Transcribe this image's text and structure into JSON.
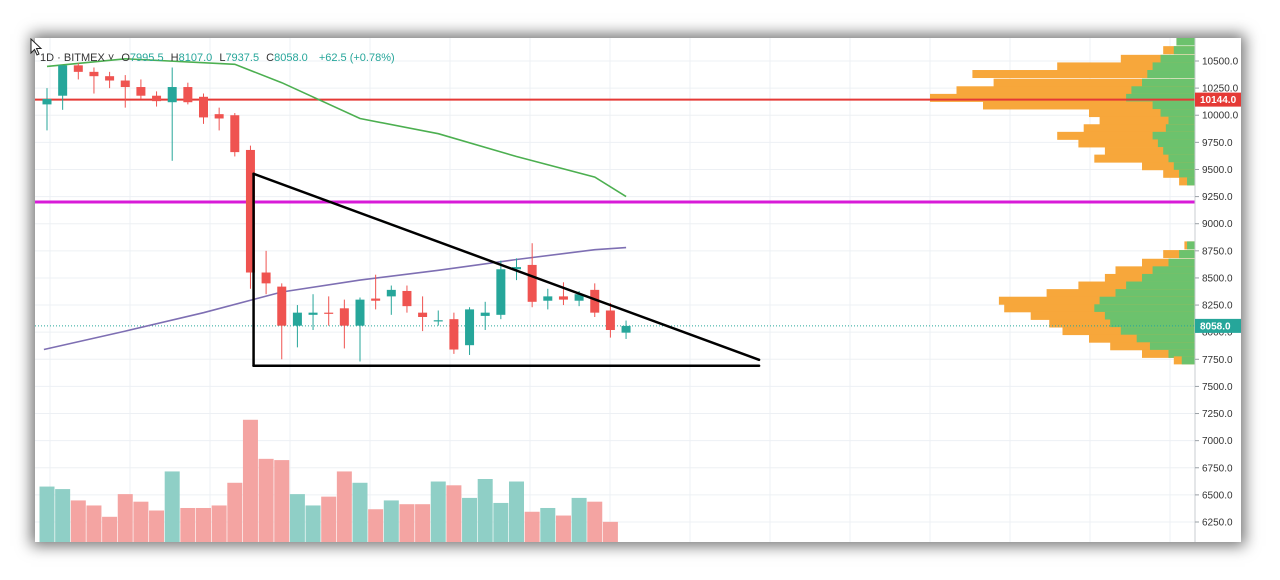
{
  "header": {
    "interval": "1D",
    "exchange": "BITMEX",
    "open_label": "O",
    "open": "7995.5",
    "high_label": "H",
    "high": "8107.0",
    "low_label": "L",
    "low": "7937.5",
    "close_label": "C",
    "close": "8058.0",
    "change": "+62.5 (+0.78%)"
  },
  "colors": {
    "up": "#26a69a",
    "down": "#ef5350",
    "up_volume": "#8fcfc6",
    "down_volume": "#f4a4a2",
    "ma_green": "#4caf50",
    "ma_purple": "#7e6fb3",
    "resistance_red": "#e53935",
    "support_magenta": "#d81bd8",
    "triangle": "#000000",
    "profile_orange": "#f7a73b",
    "profile_green": "#6cc26d",
    "text": "#333333"
  },
  "chart_data": {
    "type": "candlestick",
    "price_axis": {
      "ticks": [
        "10500.0",
        "10250.0",
        "10000.0",
        "9750.0",
        "9500.0",
        "9250.0",
        "9000.0",
        "8750.0",
        "8500.0",
        "8250.0",
        "8000.0",
        "7750.0",
        "7500.0",
        "7250.0",
        "7000.0",
        "6750.0",
        "6500.0",
        "6250.0"
      ],
      "range": [
        6050,
        10750
      ]
    },
    "last_price": "8058.0",
    "levels": [
      {
        "name": "resistance",
        "value": 10144,
        "label": "10144.0",
        "color": "#e53935"
      },
      {
        "name": "support",
        "value": 9200,
        "label": "",
        "color": "#d81bd8"
      }
    ],
    "candles": [
      {
        "o": 10100,
        "h": 10250,
        "l": 9860,
        "c": 10150
      },
      {
        "o": 10180,
        "h": 10450,
        "l": 10050,
        "c": 10460
      },
      {
        "o": 10460,
        "h": 10480,
        "l": 10330,
        "c": 10400
      },
      {
        "o": 10400,
        "h": 10440,
        "l": 10200,
        "c": 10360
      },
      {
        "o": 10360,
        "h": 10400,
        "l": 10250,
        "c": 10320
      },
      {
        "o": 10320,
        "h": 10370,
        "l": 10070,
        "c": 10260
      },
      {
        "o": 10260,
        "h": 10330,
        "l": 10150,
        "c": 10180
      },
      {
        "o": 10180,
        "h": 10220,
        "l": 10080,
        "c": 10130
      },
      {
        "o": 10120,
        "h": 10440,
        "l": 9580,
        "c": 10260
      },
      {
        "o": 10260,
        "h": 10300,
        "l": 10100,
        "c": 10120
      },
      {
        "o": 10170,
        "h": 10200,
        "l": 9920,
        "c": 9980
      },
      {
        "o": 10010,
        "h": 10070,
        "l": 9860,
        "c": 9970
      },
      {
        "o": 10000,
        "h": 10020,
        "l": 9620,
        "c": 9660
      },
      {
        "o": 9680,
        "h": 9720,
        "l": 8400,
        "c": 8550
      },
      {
        "o": 8550,
        "h": 8750,
        "l": 8350,
        "c": 8450
      },
      {
        "o": 8420,
        "h": 8450,
        "l": 7750,
        "c": 8060
      },
      {
        "o": 8060,
        "h": 8250,
        "l": 7860,
        "c": 8180
      },
      {
        "o": 8160,
        "h": 8350,
        "l": 8020,
        "c": 8180
      },
      {
        "o": 8180,
        "h": 8330,
        "l": 8060,
        "c": 8170
      },
      {
        "o": 8220,
        "h": 8300,
        "l": 7850,
        "c": 8060
      },
      {
        "o": 8060,
        "h": 8320,
        "l": 7730,
        "c": 8300
      },
      {
        "o": 8310,
        "h": 8530,
        "l": 8210,
        "c": 8290
      },
      {
        "o": 8330,
        "h": 8430,
        "l": 8160,
        "c": 8390
      },
      {
        "o": 8380,
        "h": 8430,
        "l": 8180,
        "c": 8240
      },
      {
        "o": 8180,
        "h": 8330,
        "l": 8010,
        "c": 8140
      },
      {
        "o": 8100,
        "h": 8200,
        "l": 8060,
        "c": 8110
      },
      {
        "o": 8120,
        "h": 8180,
        "l": 7800,
        "c": 7840
      },
      {
        "o": 7880,
        "h": 8230,
        "l": 7790,
        "c": 8210
      },
      {
        "o": 8150,
        "h": 8280,
        "l": 8020,
        "c": 8180
      },
      {
        "o": 8160,
        "h": 8660,
        "l": 8120,
        "c": 8580
      },
      {
        "o": 8580,
        "h": 8680,
        "l": 8480,
        "c": 8600
      },
      {
        "o": 8620,
        "h": 8820,
        "l": 8230,
        "c": 8280
      },
      {
        "o": 8290,
        "h": 8400,
        "l": 8210,
        "c": 8330
      },
      {
        "o": 8330,
        "h": 8460,
        "l": 8250,
        "c": 8300
      },
      {
        "o": 8290,
        "h": 8380,
        "l": 8240,
        "c": 8350
      },
      {
        "o": 8390,
        "h": 8450,
        "l": 8140,
        "c": 8180
      },
      {
        "o": 8200,
        "h": 8270,
        "l": 7950,
        "c": 8020
      },
      {
        "o": 7995.5,
        "h": 8107,
        "l": 7937.5,
        "c": 8058
      }
    ],
    "volume_relative": [
      0.44,
      0.42,
      0.33,
      0.29,
      0.2,
      0.38,
      0.32,
      0.25,
      0.56,
      0.27,
      0.27,
      0.29,
      0.47,
      0.97,
      0.66,
      0.65,
      0.38,
      0.29,
      0.36,
      0.56,
      0.47,
      0.26,
      0.33,
      0.3,
      0.3,
      0.48,
      0.45,
      0.35,
      0.5,
      0.31,
      0.48,
      0.24,
      0.27,
      0.21,
      0.35,
      0.32,
      0.16,
      0.0
    ],
    "moving_averages": [
      {
        "color": "#4caf50",
        "points": [
          [
            0,
            10450
          ],
          [
            5,
            10520
          ],
          [
            12,
            10470
          ],
          [
            15,
            10300
          ],
          [
            20,
            9970
          ],
          [
            25,
            9830
          ],
          [
            30,
            9620
          ],
          [
            35,
            9430
          ],
          [
            37,
            9250
          ]
        ]
      },
      {
        "color": "#7e6fb3",
        "points": [
          [
            -0.2,
            7840
          ],
          [
            5,
            8010
          ],
          [
            10,
            8180
          ],
          [
            15,
            8370
          ],
          [
            20,
            8480
          ],
          [
            25,
            8570
          ],
          [
            30,
            8670
          ],
          [
            35,
            8760
          ],
          [
            37,
            8780
          ]
        ]
      }
    ],
    "triangle": {
      "upper_trendline": [
        [
          13.2,
          9460
        ],
        [
          45.5,
          7745
        ]
      ],
      "lower_support": [
        [
          13.2,
          7690
        ],
        [
          45.5,
          7690
        ]
      ],
      "vertical": [
        [
          13.2,
          9460
        ],
        [
          13.2,
          7690
        ]
      ]
    },
    "volume_profile": [
      {
        "price": 10680,
        "orange": 0.07,
        "green": 0.07
      },
      {
        "price": 10600,
        "orange": 0.12,
        "green": 0.08
      },
      {
        "price": 10520,
        "orange": 0.28,
        "green": 0.13
      },
      {
        "price": 10450,
        "orange": 0.52,
        "green": 0.16
      },
      {
        "price": 10380,
        "orange": 0.84,
        "green": 0.18
      },
      {
        "price": 10300,
        "orange": 0.76,
        "green": 0.2
      },
      {
        "price": 10230,
        "orange": 0.9,
        "green": 0.24
      },
      {
        "price": 10160,
        "orange": 1.0,
        "green": 0.26
      },
      {
        "price": 10090,
        "orange": 0.8,
        "green": 0.16
      },
      {
        "price": 10020,
        "orange": 0.4,
        "green": 0.13
      },
      {
        "price": 9950,
        "orange": 0.36,
        "green": 0.1
      },
      {
        "price": 9880,
        "orange": 0.42,
        "green": 0.11
      },
      {
        "price": 9810,
        "orange": 0.52,
        "green": 0.16
      },
      {
        "price": 9740,
        "orange": 0.44,
        "green": 0.14
      },
      {
        "price": 9670,
        "orange": 0.34,
        "green": 0.12
      },
      {
        "price": 9600,
        "orange": 0.38,
        "green": 0.1
      },
      {
        "price": 9530,
        "orange": 0.2,
        "green": 0.08
      },
      {
        "price": 9460,
        "orange": 0.12,
        "green": 0.06
      },
      {
        "price": 9390,
        "orange": 0.06,
        "green": 0.03
      },
      {
        "price": 8800,
        "orange": 0.04,
        "green": 0.03
      },
      {
        "price": 8720,
        "orange": 0.12,
        "green": 0.06
      },
      {
        "price": 8640,
        "orange": 0.2,
        "green": 0.1
      },
      {
        "price": 8570,
        "orange": 0.3,
        "green": 0.16
      },
      {
        "price": 8500,
        "orange": 0.34,
        "green": 0.2
      },
      {
        "price": 8430,
        "orange": 0.44,
        "green": 0.26
      },
      {
        "price": 8360,
        "orange": 0.56,
        "green": 0.3
      },
      {
        "price": 8290,
        "orange": 0.74,
        "green": 0.36
      },
      {
        "price": 8220,
        "orange": 0.72,
        "green": 0.38
      },
      {
        "price": 8150,
        "orange": 0.62,
        "green": 0.34
      },
      {
        "price": 8080,
        "orange": 0.55,
        "green": 0.32
      },
      {
        "price": 8010,
        "orange": 0.5,
        "green": 0.28
      },
      {
        "price": 7940,
        "orange": 0.4,
        "green": 0.22
      },
      {
        "price": 7870,
        "orange": 0.32,
        "green": 0.17
      },
      {
        "price": 7800,
        "orange": 0.2,
        "green": 0.1
      },
      {
        "price": 7740,
        "orange": 0.08,
        "green": 0.05
      }
    ]
  }
}
